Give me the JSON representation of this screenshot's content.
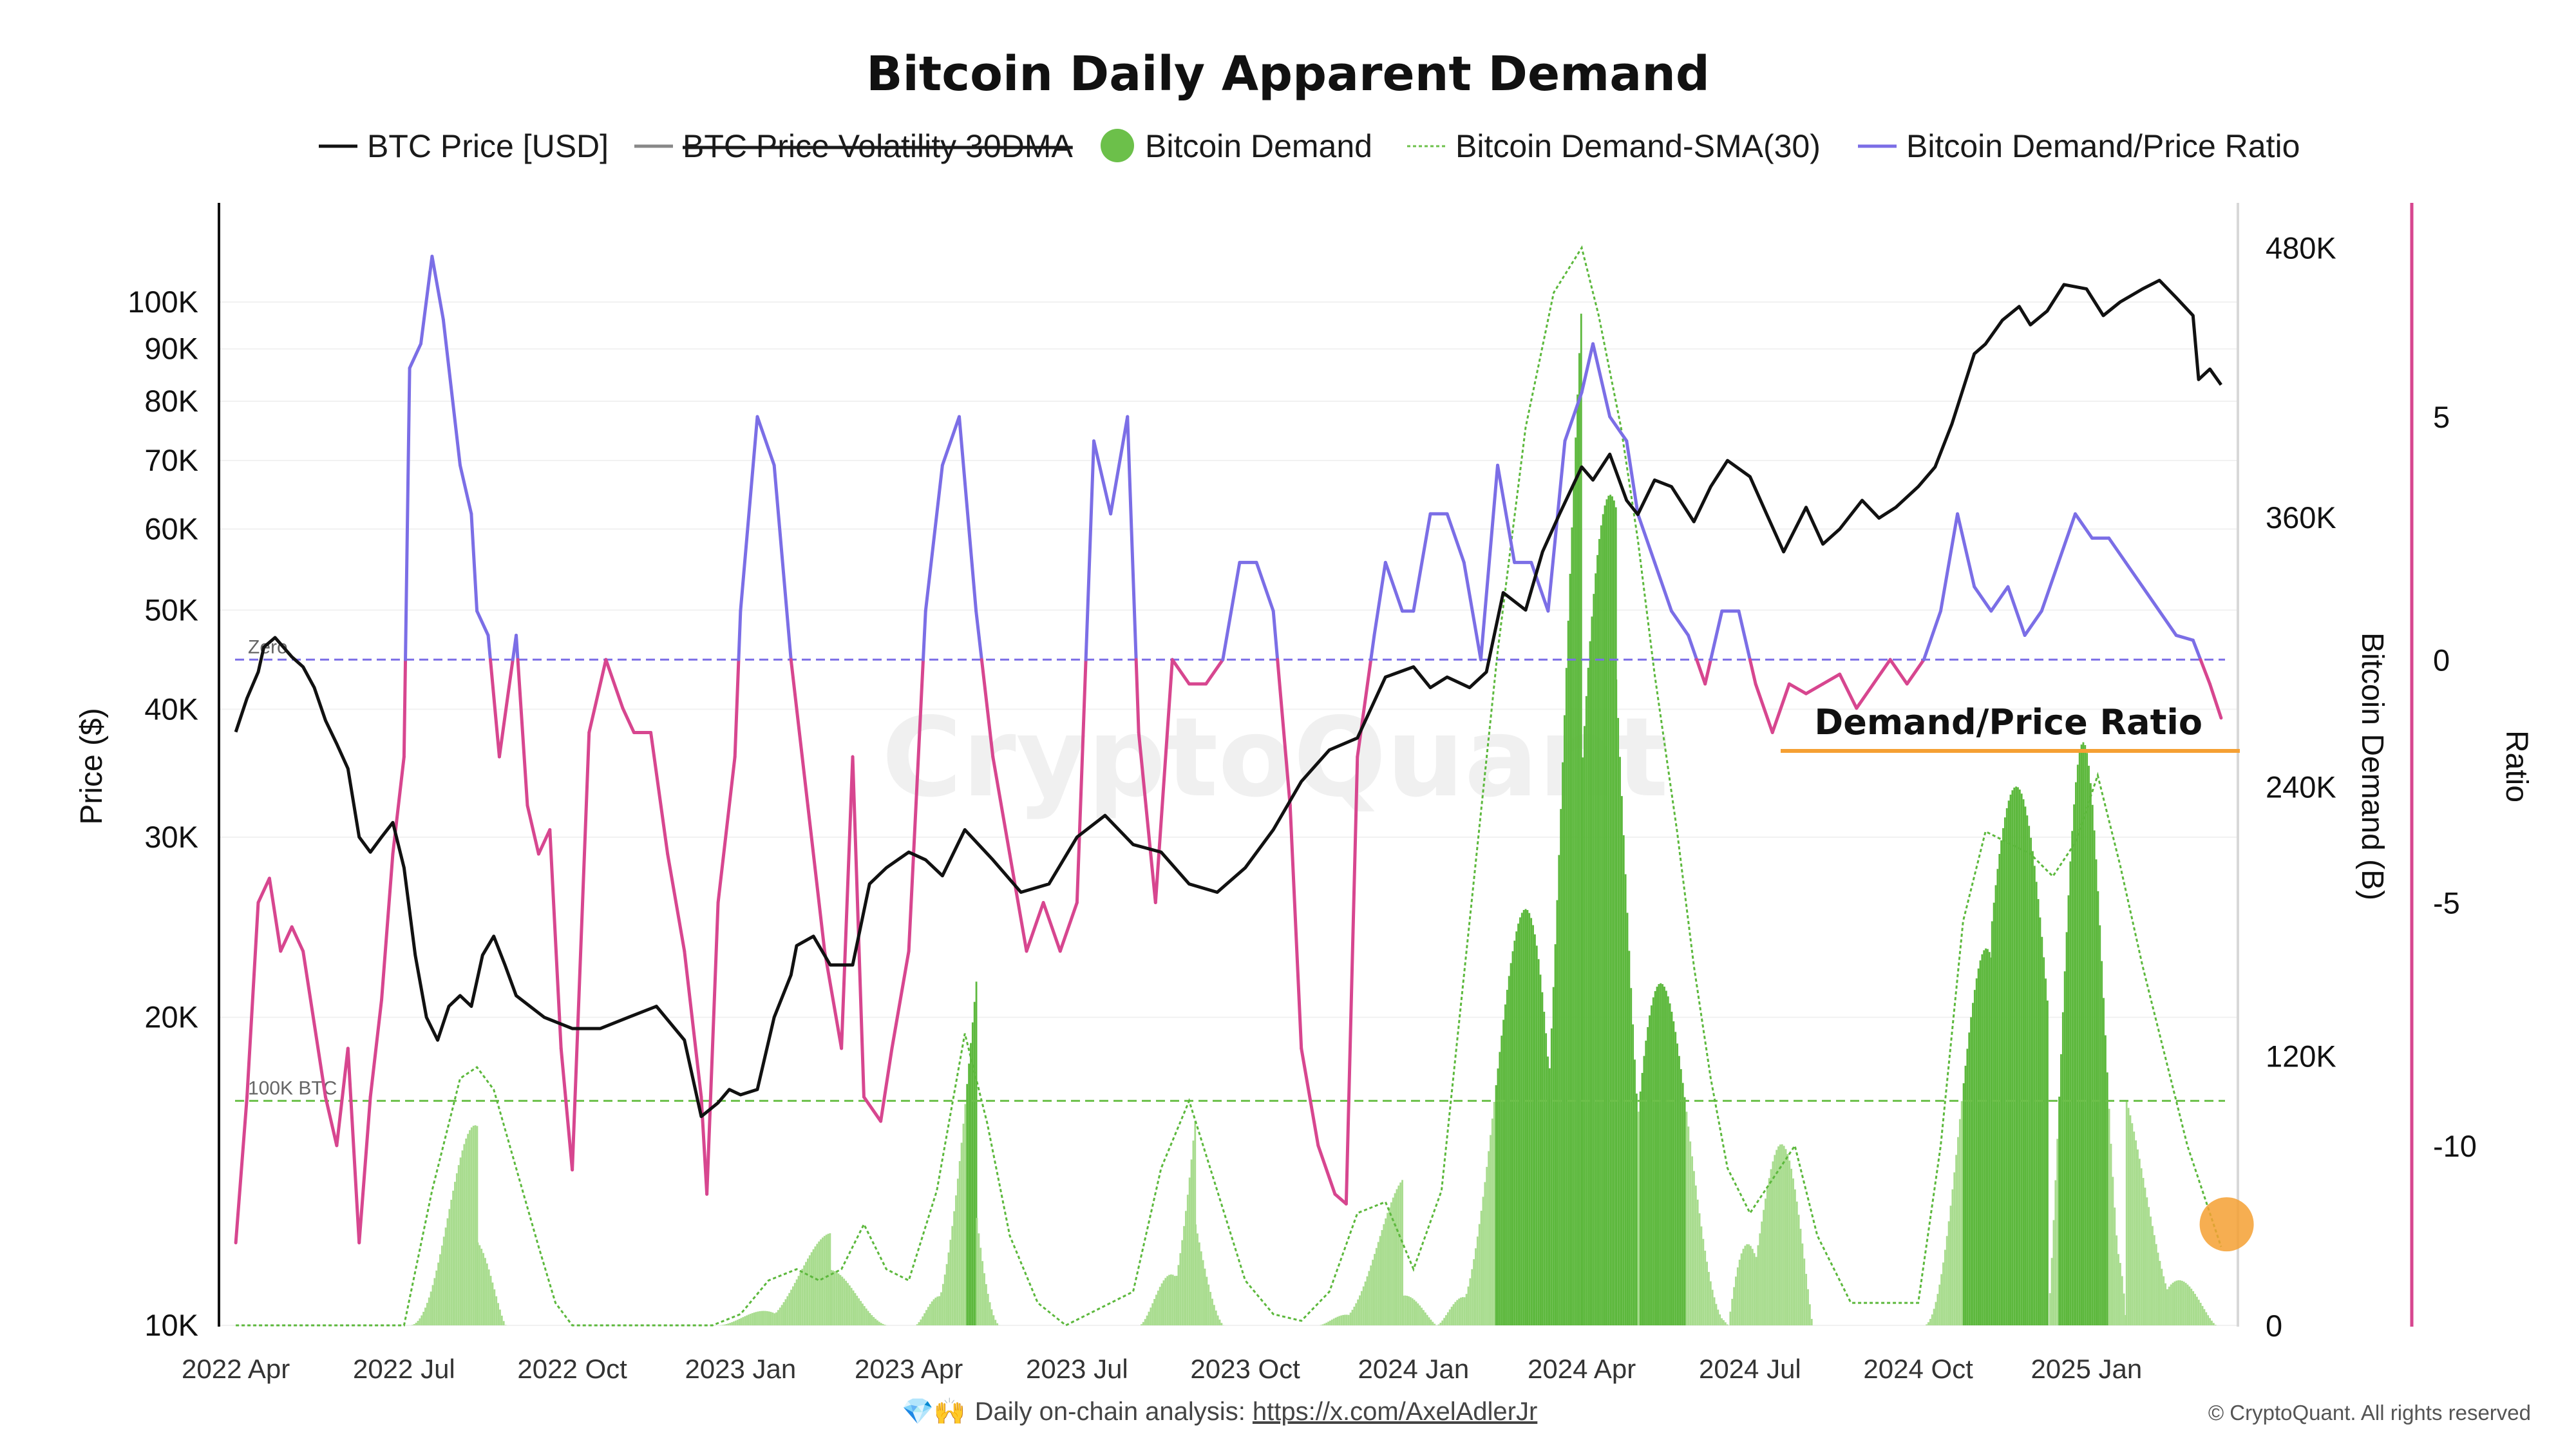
{
  "chart_data": {
    "type": "line",
    "title": "Bitcoin Daily Apparent Demand",
    "legend": [
      {
        "name": "BTC Price [USD]",
        "color": "#111111",
        "style": "line"
      },
      {
        "name": "BTC Price Volatility 30DMA",
        "color": "#888888",
        "style": "line-struck"
      },
      {
        "name": "Bitcoin Demand",
        "color": "#6cc04a",
        "style": "dot"
      },
      {
        "name": "Bitcoin Demand-SMA(30)",
        "color": "#6cc04a",
        "style": "dotted"
      },
      {
        "name": "Bitcoin Demand/Price Ratio",
        "color": "#7b6ee6",
        "style": "line"
      }
    ],
    "left_axis": {
      "label": "Price ($)",
      "scale": "log",
      "ticks": [
        "100K",
        "90K",
        "80K",
        "70K",
        "60K",
        "50K",
        "40K",
        "30K",
        "20K",
        "10K"
      ],
      "tick_values": [
        100000,
        90000,
        80000,
        70000,
        60000,
        50000,
        40000,
        30000,
        20000,
        10000
      ],
      "range": [
        10000,
        125000
      ]
    },
    "right_axis_1": {
      "label": "Bitcoin Demand (B)",
      "ticks": [
        "480K",
        "360K",
        "240K",
        "120K",
        "0"
      ],
      "tick_values": [
        480000,
        360000,
        240000,
        120000,
        0
      ],
      "range": [
        0,
        500000
      ]
    },
    "right_axis_2": {
      "label": "Ratio",
      "ticks": [
        "5",
        "0",
        "-5",
        "-10"
      ],
      "tick_values": [
        5,
        0,
        -5,
        -10
      ],
      "range": [
        -13.7,
        9.4
      ]
    },
    "x_axis": {
      "ticks": [
        "2022 Apr",
        "2022 Jul",
        "2022 Oct",
        "2023 Jan",
        "2023 Apr",
        "2023 Jul",
        "2023 Oct",
        "2024 Jan",
        "2024 Apr",
        "2024 Jul",
        "2024 Oct",
        "2025 Jan"
      ],
      "tick_months": [
        0,
        3,
        6,
        9,
        12,
        15,
        18,
        21,
        24,
        27,
        30,
        33
      ],
      "range_months": [
        -0.3,
        35.7
      ]
    },
    "reference_lines": [
      {
        "label": "Zero",
        "axis": "ratio",
        "value": 0,
        "color": "#7b6ee6"
      },
      {
        "label": "100K BTC",
        "axis": "demand",
        "value": 100000,
        "color": "#6cc04a"
      }
    ],
    "annotation": {
      "text": "Demand/Price Ratio",
      "line_color": "#f5a033"
    },
    "marker": {
      "month": 35.5,
      "demand": 45000,
      "color": "#f5a033"
    },
    "btc_price": {
      "months": [
        0,
        0.2,
        0.4,
        0.5,
        0.7,
        1,
        1.2,
        1.4,
        1.6,
        1.8,
        2,
        2.2,
        2.4,
        2.6,
        2.8,
        3,
        3.2,
        3.4,
        3.6,
        3.8,
        4,
        4.2,
        4.4,
        4.6,
        4.8,
        5,
        5.5,
        6,
        6.5,
        7,
        7.5,
        8,
        8.3,
        8.6,
        8.8,
        9,
        9.3,
        9.6,
        9.9,
        10,
        10.3,
        10.6,
        11,
        11.3,
        11.6,
        12,
        12.3,
        12.6,
        13,
        13.5,
        14,
        14.5,
        15,
        15.5,
        16,
        16.5,
        17,
        17.5,
        18,
        18.5,
        19,
        19.5,
        20,
        20.5,
        21,
        21.3,
        21.6,
        22,
        22.3,
        22.6,
        23,
        23.3,
        23.6,
        24,
        24.2,
        24.5,
        24.8,
        25,
        25.3,
        25.6,
        26,
        26.3,
        26.6,
        27,
        27.3,
        27.6,
        28,
        28.3,
        28.6,
        29,
        29.3,
        29.6,
        30,
        30.3,
        30.6,
        31,
        31.2,
        31.5,
        31.8,
        32,
        32.3,
        32.6,
        33,
        33.3,
        33.6,
        34,
        34.3,
        34.6,
        34.9,
        35,
        35.2,
        35.4
      ],
      "values": [
        38000,
        41000,
        43500,
        46000,
        47000,
        45000,
        44000,
        42000,
        39000,
        37000,
        35000,
        30000,
        29000,
        30000,
        31000,
        28000,
        23000,
        20000,
        19000,
        20500,
        21000,
        20500,
        23000,
        24000,
        22500,
        21000,
        20000,
        19500,
        19500,
        20000,
        20500,
        19000,
        16000,
        16500,
        17000,
        16800,
        17000,
        20000,
        22000,
        23500,
        24000,
        22500,
        22500,
        27000,
        28000,
        29000,
        28500,
        27500,
        30500,
        28500,
        26500,
        27000,
        30000,
        31500,
        29500,
        29000,
        27000,
        26500,
        28000,
        30500,
        34000,
        36500,
        37500,
        43000,
        44000,
        42000,
        43000,
        42000,
        43500,
        52000,
        50000,
        57000,
        62000,
        69000,
        67000,
        71000,
        64000,
        62000,
        67000,
        66000,
        61000,
        66000,
        70000,
        67500,
        62000,
        57000,
        63000,
        58000,
        60000,
        64000,
        61500,
        63000,
        66000,
        69000,
        76000,
        89000,
        91000,
        96000,
        99000,
        95000,
        98000,
        104000,
        103000,
        97000,
        100000,
        103000,
        105000,
        101000,
        97000,
        84000,
        86000,
        83000
      ]
    },
    "ratio": {
      "months": [
        0,
        0.2,
        0.4,
        0.6,
        0.8,
        1,
        1.2,
        1.4,
        1.6,
        1.8,
        2,
        2.2,
        2.4,
        2.6,
        2.8,
        3,
        3.1,
        3.3,
        3.5,
        3.7,
        4,
        4.2,
        4.3,
        4.5,
        4.7,
        5,
        5.2,
        5.4,
        5.6,
        5.8,
        6,
        6.3,
        6.6,
        6.9,
        7.1,
        7.4,
        7.7,
        8,
        8.3,
        8.4,
        8.6,
        8.9,
        9,
        9.3,
        9.6,
        9.9,
        10.2,
        10.5,
        10.8,
        11,
        11.2,
        11.5,
        11.7,
        12,
        12.3,
        12.6,
        12.9,
        13.2,
        13.5,
        13.8,
        14.1,
        14.4,
        14.7,
        15,
        15.3,
        15.6,
        15.9,
        16.1,
        16.4,
        16.7,
        17,
        17.3,
        17.6,
        17.9,
        18.2,
        18.5,
        18.8,
        19,
        19.3,
        19.6,
        19.8,
        20,
        20.3,
        20.5,
        20.8,
        21,
        21.3,
        21.6,
        21.9,
        22.2,
        22.5,
        22.8,
        23.1,
        23.4,
        23.7,
        24,
        24.2,
        24.5,
        24.8,
        25,
        25.3,
        25.6,
        25.9,
        26.2,
        26.5,
        26.8,
        27.1,
        27.4,
        27.7,
        28,
        28.3,
        28.6,
        28.9,
        29.2,
        29.5,
        29.8,
        30.1,
        30.4,
        30.7,
        31,
        31.3,
        31.6,
        31.9,
        32.2,
        32.5,
        32.8,
        33.1,
        33.4,
        33.7,
        34,
        34.3,
        34.6,
        34.9,
        35.2,
        35.4
      ],
      "values": [
        -12,
        -9,
        -5,
        -4.5,
        -6,
        -5.5,
        -6,
        -7.5,
        -9,
        -10,
        -8,
        -12,
        -9,
        -7,
        -4,
        -2,
        6,
        6.5,
        8.3,
        7,
        4,
        3,
        1,
        0.5,
        -2,
        0.5,
        -3,
        -4,
        -3.5,
        -8,
        -10.5,
        -1.5,
        0,
        -1,
        -1.5,
        -1.5,
        -4,
        -6,
        -9,
        -11,
        -5,
        -2,
        1,
        5,
        4,
        0,
        -3,
        -6,
        -8,
        -2,
        -9,
        -9.5,
        -8,
        -6,
        1,
        4,
        5,
        1,
        -2,
        -4,
        -6,
        -5,
        -6,
        -5,
        4.5,
        3,
        5,
        -1.5,
        -5,
        0,
        -0.5,
        -0.5,
        0,
        2,
        2,
        1,
        -3,
        -8,
        -10,
        -11,
        -11.2,
        -2,
        0.5,
        2,
        1,
        1,
        3,
        3,
        2,
        0,
        4,
        2,
        2,
        1,
        4.5,
        5.5,
        6.5,
        5,
        4.5,
        3,
        2,
        1,
        0.5,
        -0.5,
        1,
        1,
        -0.5,
        -1.5,
        -0.5,
        -0.7,
        -0.5,
        -0.3,
        -1,
        -0.5,
        0,
        -0.5,
        0,
        1,
        3,
        1.5,
        1,
        1.5,
        0.5,
        1,
        2,
        3,
        2.5,
        2.5,
        2,
        1.5,
        1,
        0.5,
        0.4,
        -0.5,
        -1.2
      ]
    },
    "demand": {
      "segments": [
        {
          "start": 3.1,
          "end": 4.3,
          "peak": 125000,
          "shape": "up"
        },
        {
          "start": 4.3,
          "end": 4.8,
          "peak": 55000,
          "shape": "down"
        },
        {
          "start": 8.6,
          "end": 10.6,
          "peak": 45000,
          "shape": "up"
        },
        {
          "start": 10.6,
          "end": 11.6,
          "peak": 30000,
          "shape": "down"
        },
        {
          "start": 12.1,
          "end": 13.2,
          "peak": 158000,
          "shape": "up"
        },
        {
          "start": 13.2,
          "end": 13.6,
          "peak": 60000,
          "shape": "down"
        },
        {
          "start": 16.1,
          "end": 17.1,
          "peak": 120000,
          "shape": "up"
        },
        {
          "start": 17.1,
          "end": 17.6,
          "peak": 45000,
          "shape": "down"
        },
        {
          "start": 19.3,
          "end": 20.8,
          "peak": 70000,
          "shape": "up"
        },
        {
          "start": 20.8,
          "end": 21.4,
          "peak": 25000,
          "shape": "down"
        },
        {
          "start": 21.4,
          "end": 24.0,
          "peak": 480000,
          "shape": "up"
        },
        {
          "start": 24.0,
          "end": 24.6,
          "peak": 370000,
          "shape": "hold"
        },
        {
          "start": 24.6,
          "end": 26.6,
          "peak": 350000,
          "shape": "down"
        },
        {
          "start": 26.6,
          "end": 28.1,
          "peak": 100000,
          "shape": "hump"
        },
        {
          "start": 30.1,
          "end": 31.3,
          "peak": 260000,
          "shape": "up"
        },
        {
          "start": 31.3,
          "end": 32.3,
          "peak": 240000,
          "shape": "hold"
        },
        {
          "start": 32.3,
          "end": 33.7,
          "peak": 270000,
          "shape": "hump"
        },
        {
          "start": 33.7,
          "end": 35.3,
          "peak": 100000,
          "shape": "down"
        }
      ]
    },
    "demand_sma": {
      "months": [
        0,
        3.0,
        3.5,
        4.0,
        4.3,
        4.6,
        5.0,
        5.4,
        5.7,
        6.0,
        8.5,
        9.0,
        9.5,
        10.0,
        10.4,
        10.8,
        11.2,
        11.6,
        12.0,
        12.5,
        13.0,
        13.4,
        13.8,
        14.3,
        14.8,
        16.0,
        16.5,
        17.0,
        17.5,
        18.0,
        18.5,
        19.0,
        19.5,
        20.0,
        20.5,
        21.0,
        21.5,
        22.0,
        22.5,
        23.0,
        23.5,
        24.0,
        24.3,
        24.7,
        25.0,
        25.3,
        25.7,
        26.0,
        26.3,
        26.6,
        27.0,
        27.4,
        27.8,
        28.2,
        28.8,
        29.5,
        30.0,
        30.4,
        30.8,
        31.2,
        31.6,
        32.0,
        32.4,
        32.8,
        33.2,
        33.6,
        34.0,
        34.4,
        34.8,
        35.2,
        35.4
      ],
      "values": [
        0,
        0,
        60000,
        110000,
        115000,
        105000,
        70000,
        35000,
        10000,
        0,
        0,
        5000,
        20000,
        25000,
        20000,
        25000,
        45000,
        25000,
        20000,
        60000,
        130000,
        90000,
        40000,
        10000,
        0,
        15000,
        70000,
        100000,
        60000,
        20000,
        5000,
        2000,
        15000,
        50000,
        55000,
        25000,
        60000,
        180000,
        300000,
        400000,
        460000,
        480000,
        450000,
        400000,
        350000,
        290000,
        220000,
        160000,
        110000,
        70000,
        50000,
        65000,
        80000,
        40000,
        10000,
        10000,
        10000,
        80000,
        180000,
        220000,
        215000,
        210000,
        200000,
        215000,
        245000,
        205000,
        160000,
        120000,
        80000,
        50000,
        35000
      ]
    }
  },
  "footer": {
    "emoji": "💎🙌",
    "prefix": "Daily on-chain analysis: ",
    "link": "https://x.com/AxelAdlerJr",
    "watermark": "CryptoQuant",
    "copyright": "© CryptoQuant. All rights reserved"
  }
}
